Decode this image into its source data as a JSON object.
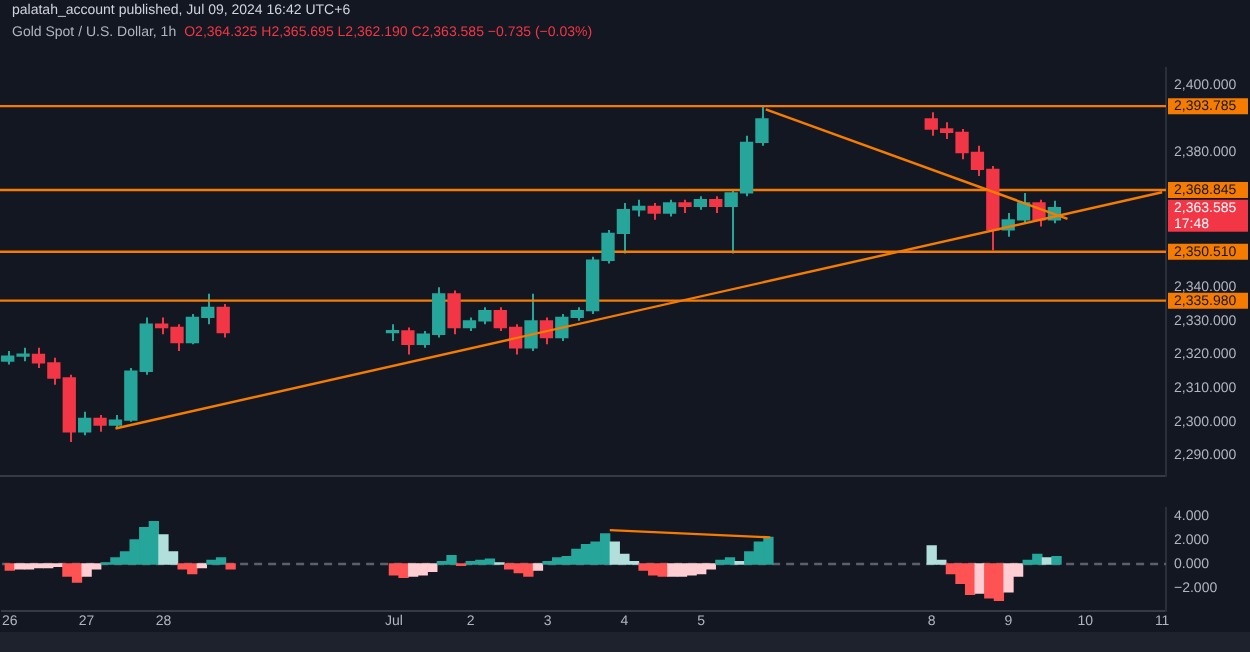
{
  "chart_data": [
    {
      "type": "candlestick",
      "title": "Gold Spot / U.S. Dollar, 1h",
      "subtitle": "palatah_account published, Jul 09, 2024 16:42 UTC+6",
      "annotations": [
        "O2,364.325 H2,365.695 L2,362.190 C2,363.585 −0.735 (−0.03%)",
        "2,363.585",
        "17:48"
      ],
      "x": [
        "2024-06-26T00:00",
        "2024-06-26T04:48",
        "2024-06-26T09:36",
        "2024-06-26T14:24",
        "2024-06-26T19:12",
        "2024-06-27T00:00",
        "2024-06-27T04:48",
        "2024-06-27T09:36",
        "2024-06-27T14:24",
        "2024-06-27T19:12",
        "2024-06-28T00:00",
        "2024-06-28T04:48",
        "2024-06-28T09:36",
        "2024-06-28T14:24",
        "2024-06-28T19:12",
        "2024-07-01T00:00",
        "2024-07-01T04:48",
        "2024-07-01T09:36",
        "2024-07-01T14:24",
        "2024-07-01T19:12",
        "2024-07-02T00:00",
        "2024-07-02T04:48",
        "2024-07-02T09:36",
        "2024-07-02T14:24",
        "2024-07-02T19:12",
        "2024-07-03T00:00",
        "2024-07-03T04:48",
        "2024-07-03T09:36",
        "2024-07-03T14:24",
        "2024-07-03T19:12",
        "2024-07-04T00:00",
        "2024-07-04T04:48",
        "2024-07-04T09:36",
        "2024-07-04T14:24",
        "2024-07-04T19:12",
        "2024-07-05T00:00",
        "2024-07-05T04:48",
        "2024-07-05T09:36",
        "2024-07-05T14:24",
        "2024-07-05T19:12",
        "2024-07-08T00:00",
        "2024-07-08T04:48",
        "2024-07-08T09:36",
        "2024-07-08T14:24",
        "2024-07-08T19:12",
        "2024-07-09T00:00",
        "2024-07-09T04:48",
        "2024-07-09T09:36",
        "2024-07-09T14:24"
      ],
      "ohlc": [
        [
          2318,
          2321,
          2317,
          2319.5
        ],
        [
          2319.5,
          2322,
          2318,
          2320
        ],
        [
          2320,
          2322,
          2316,
          2317.5
        ],
        [
          2317.5,
          2319,
          2311,
          2313
        ],
        [
          2313,
          2314,
          2294,
          2297
        ],
        [
          2297,
          2303,
          2296,
          2301
        ],
        [
          2301,
          2302,
          2297,
          2299
        ],
        [
          2299,
          2302,
          2298,
          2300.5
        ],
        [
          2300.5,
          2316,
          2300,
          2315
        ],
        [
          2315,
          2331,
          2314,
          2329
        ],
        [
          2329,
          2331,
          2326,
          2328
        ],
        [
          2328,
          2329,
          2321,
          2323.5
        ],
        [
          2323.5,
          2332,
          2323,
          2331
        ],
        [
          2331,
          2338,
          2329,
          2334
        ],
        [
          2334,
          2335,
          2325,
          2326.5
        ],
        [
          2326.5,
          2329,
          2324,
          2327
        ],
        [
          2327,
          2328,
          2320,
          2323
        ],
        [
          2323,
          2327,
          2322,
          2326
        ],
        [
          2326,
          2340,
          2325,
          2338
        ],
        [
          2338,
          2339,
          2326,
          2328
        ],
        [
          2328,
          2331,
          2327,
          2330
        ],
        [
          2330,
          2334,
          2329,
          2333
        ],
        [
          2333,
          2334,
          2327,
          2328
        ],
        [
          2328,
          2329,
          2320,
          2322
        ],
        [
          2322,
          2338,
          2321,
          2330
        ],
        [
          2330,
          2331,
          2323,
          2325
        ],
        [
          2325,
          2332,
          2324,
          2331
        ],
        [
          2331,
          2334,
          2330,
          2333
        ],
        [
          2333,
          2349,
          2332,
          2348
        ],
        [
          2348,
          2357,
          2347,
          2356
        ],
        [
          2356,
          2365,
          2350,
          2363
        ],
        [
          2363,
          2366,
          2361,
          2364
        ],
        [
          2364,
          2365,
          2360,
          2362
        ],
        [
          2362,
          2366,
          2361,
          2365
        ],
        [
          2365,
          2366,
          2362,
          2364
        ],
        [
          2364,
          2367,
          2363,
          2366
        ],
        [
          2366,
          2367,
          2362,
          2364
        ],
        [
          2364,
          2369,
          2350,
          2368
        ],
        [
          2368,
          2385,
          2367,
          2383
        ],
        [
          2383,
          2393.5,
          2382,
          2390
        ],
        [
          2390,
          2392,
          2385,
          2387
        ],
        [
          2387,
          2389,
          2384,
          2386
        ],
        [
          2386,
          2387,
          2378,
          2380
        ],
        [
          2380,
          2382,
          2373,
          2375
        ],
        [
          2375,
          2376,
          2351,
          2357
        ],
        [
          2357,
          2362,
          2355,
          2360
        ],
        [
          2360,
          2368,
          2359,
          2365
        ],
        [
          2365,
          2366,
          2358,
          2360
        ],
        [
          2360,
          2365.695,
          2359,
          2363.585
        ]
      ],
      "colors": [
        "#26a69a",
        "#26a69a",
        "#f23645",
        "#f23645",
        "#f23645",
        "#26a69a",
        "#f23645",
        "#26a69a",
        "#26a69a",
        "#26a69a",
        "#f23645",
        "#f23645",
        "#26a69a",
        "#26a69a",
        "#f23645",
        "#26a69a",
        "#f23645",
        "#26a69a",
        "#26a69a",
        "#f23645",
        "#26a69a",
        "#26a69a",
        "#f23645",
        "#f23645",
        "#26a69a",
        "#f23645",
        "#26a69a",
        "#26a69a",
        "#26a69a",
        "#26a69a",
        "#26a69a",
        "#26a69a",
        "#f23645",
        "#26a69a",
        "#f23645",
        "#26a69a",
        "#f23645",
        "#26a69a",
        "#26a69a",
        "#26a69a",
        "#f23645",
        "#f23645",
        "#f23645",
        "#f23645",
        "#f23645",
        "#26a69a",
        "#26a69a",
        "#f23645",
        "#26a69a"
      ],
      "series": [
        {
          "type": "line",
          "color": "#f57c00",
          "x": [
            "2024-06-27T09:36",
            "2024-07-11T00:00"
          ],
          "values": [
            2298,
            2368.2
          ]
        },
        {
          "type": "line",
          "color": "#f57c00",
          "x": [
            "2024-07-05T20:24",
            "2024-07-09T18:29"
          ],
          "values": [
            2392.8,
            2360.3
          ]
        }
      ],
      "ref_lines": [
        {
          "axis": "y",
          "value": 2393.785,
          "label": "2,393.785",
          "color": "#f57c00",
          "line_style": "solid"
        },
        {
          "axis": "y",
          "value": 2368.845,
          "label": "2,368.845",
          "color": "#f57c00",
          "line_style": "solid"
        },
        {
          "axis": "y",
          "value": 2350.51,
          "label": "2,350.510",
          "color": "#f57c00",
          "line_style": "solid"
        },
        {
          "axis": "y",
          "value": 2335.98,
          "label": "2,335.980",
          "color": "#f57c00",
          "line_style": "solid"
        }
      ],
      "xlim": [
        "2024-06-25T21:36",
        "2024-07-11T01:12"
      ],
      "ylim": [
        2284,
        2405
      ],
      "yticks": [
        {
          "value": 2400,
          "label": "2,400.000"
        },
        {
          "value": 2380,
          "label": "2,380.000"
        },
        {
          "value": 2340,
          "label": "2,340.000"
        },
        {
          "value": 2330,
          "label": "2,330.000"
        },
        {
          "value": 2320,
          "label": "2,320.000"
        },
        {
          "value": 2310,
          "label": "2,310.000"
        },
        {
          "value": 2300,
          "label": "2,300.000"
        },
        {
          "value": 2290,
          "label": "2,290.000"
        }
      ],
      "tick_labels": "y",
      "grid": false,
      "legend": false
    },
    {
      "type": "bar",
      "series": [
        {
          "type": "bar",
          "x": [
            "2024-06-26T00:00",
            "2024-06-26T03:00",
            "2024-06-26T06:00",
            "2024-06-26T09:00",
            "2024-06-26T12:00",
            "2024-06-26T15:00",
            "2024-06-26T18:00",
            "2024-06-26T21:00",
            "2024-06-27T00:00",
            "2024-06-27T03:00",
            "2024-06-27T06:00",
            "2024-06-27T09:00",
            "2024-06-27T12:00",
            "2024-06-27T15:00",
            "2024-06-27T18:00",
            "2024-06-27T21:00",
            "2024-06-28T00:00",
            "2024-06-28T03:00",
            "2024-06-28T06:00",
            "2024-06-28T09:00",
            "2024-06-28T12:00",
            "2024-06-28T15:00",
            "2024-06-28T18:00",
            "2024-06-28T21:00",
            "2024-07-01T00:00",
            "2024-07-01T03:00",
            "2024-07-01T06:00",
            "2024-07-01T09:00",
            "2024-07-01T12:00",
            "2024-07-01T15:00",
            "2024-07-01T18:00",
            "2024-07-01T21:00",
            "2024-07-02T00:00",
            "2024-07-02T03:00",
            "2024-07-02T06:00",
            "2024-07-02T09:00",
            "2024-07-02T12:00",
            "2024-07-02T15:00",
            "2024-07-02T18:00",
            "2024-07-02T21:00",
            "2024-07-03T00:00",
            "2024-07-03T03:00",
            "2024-07-03T06:00",
            "2024-07-03T09:00",
            "2024-07-03T12:00",
            "2024-07-03T15:00",
            "2024-07-03T18:00",
            "2024-07-03T21:00",
            "2024-07-04T00:00",
            "2024-07-04T03:00",
            "2024-07-04T06:00",
            "2024-07-04T09:00",
            "2024-07-04T12:00",
            "2024-07-04T15:00",
            "2024-07-04T18:00",
            "2024-07-04T21:00",
            "2024-07-05T00:00",
            "2024-07-05T03:00",
            "2024-07-05T06:00",
            "2024-07-05T09:00",
            "2024-07-05T12:00",
            "2024-07-05T15:00",
            "2024-07-05T18:00",
            "2024-07-05T21:00",
            "2024-07-08T00:00",
            "2024-07-08T03:00",
            "2024-07-08T06:00",
            "2024-07-08T09:00",
            "2024-07-08T12:00",
            "2024-07-08T15:00",
            "2024-07-08T18:00",
            "2024-07-08T21:00",
            "2024-07-09T00:00",
            "2024-07-09T03:00",
            "2024-07-09T06:00",
            "2024-07-09T09:00",
            "2024-07-09T12:00",
            "2024-07-09T15:00"
          ],
          "values": [
            -0.5,
            -0.4,
            -0.4,
            -0.3,
            -0.3,
            -0.2,
            -1.0,
            -1.5,
            -1.0,
            -0.4,
            0.1,
            0.5,
            1.0,
            2.0,
            3.0,
            3.5,
            2.4,
            1.0,
            -0.4,
            -0.8,
            -0.3,
            0.3,
            0.5,
            -0.4,
            -0.9,
            -1.1,
            -1.0,
            -0.9,
            -0.6,
            0.2,
            0.7,
            -0.1,
            0.2,
            0.3,
            0.4,
            0.1,
            -0.4,
            -0.7,
            -1.0,
            -0.5,
            0.2,
            0.5,
            0.6,
            1.2,
            1.6,
            1.8,
            2.5,
            1.8,
            0.8,
            0.2,
            -0.5,
            -0.9,
            -1.0,
            -1.0,
            -1.0,
            -0.9,
            -0.8,
            -0.4,
            0.3,
            0.5,
            0.2,
            1.0,
            1.8,
            2.2,
            1.5,
            0.3,
            -0.8,
            -1.6,
            -2.5,
            -2.4,
            -2.8,
            -3.0,
            -2.3,
            -1.0,
            0.3,
            0.8,
            0.5,
            0.6
          ],
          "colors": [
            "#ff5252",
            "#ffcdd2",
            "#ffcdd2",
            "#ffcdd2",
            "#ffcdd2",
            "#ffcdd2",
            "#ff5252",
            "#ff5252",
            "#ffcdd2",
            "#ffcdd2",
            "#26a69a",
            "#26a69a",
            "#26a69a",
            "#26a69a",
            "#26a69a",
            "#26a69a",
            "#b2dfdb",
            "#b2dfdb",
            "#ff5252",
            "#ff5252",
            "#ffcdd2",
            "#26a69a",
            "#26a69a",
            "#ff5252",
            "#ff5252",
            "#ff5252",
            "#ffcdd2",
            "#ffcdd2",
            "#ffcdd2",
            "#26a69a",
            "#26a69a",
            "#ff5252",
            "#26a69a",
            "#26a69a",
            "#26a69a",
            "#b2dfdb",
            "#ff5252",
            "#ff5252",
            "#ff5252",
            "#ffcdd2",
            "#26a69a",
            "#26a69a",
            "#26a69a",
            "#26a69a",
            "#26a69a",
            "#26a69a",
            "#26a69a",
            "#b2dfdb",
            "#b2dfdb",
            "#b2dfdb",
            "#ff5252",
            "#ff5252",
            "#ff5252",
            "#ffcdd2",
            "#ffcdd2",
            "#ffcdd2",
            "#ffcdd2",
            "#ffcdd2",
            "#26a69a",
            "#26a69a",
            "#b2dfdb",
            "#26a69a",
            "#26a69a",
            "#26a69a",
            "#b2dfdb",
            "#b2dfdb",
            "#ff5252",
            "#ff5252",
            "#ff5252",
            "#ffcdd2",
            "#ff5252",
            "#ff5252",
            "#ffcdd2",
            "#ffcdd2",
            "#26a69a",
            "#26a69a",
            "#b2dfdb",
            "#26a69a"
          ]
        },
        {
          "type": "line",
          "color": "#f57c00",
          "x": [
            "2024-07-03T19:26",
            "2024-07-05T21:36"
          ],
          "values": [
            2.8,
            2.2
          ]
        }
      ],
      "ref_lines": [
        {
          "axis": "y",
          "value": 0,
          "color": "#5d606b",
          "line_style": "dashed"
        }
      ],
      "xlim": [
        "2024-06-25T21:36",
        "2024-07-11T01:12"
      ],
      "ylim": [
        -3.9,
        4.6
      ],
      "xticks": [
        {
          "value": "2024-06-26",
          "label": "26"
        },
        {
          "value": "2024-06-27",
          "label": "27"
        },
        {
          "value": "2024-06-28",
          "label": "28"
        },
        {
          "value": "2024-07-01",
          "label": "Jul"
        },
        {
          "value": "2024-07-02",
          "label": "2"
        },
        {
          "value": "2024-07-03",
          "label": "3"
        },
        {
          "value": "2024-07-04",
          "label": "4"
        },
        {
          "value": "2024-07-05",
          "label": "5"
        },
        {
          "value": "2024-07-08",
          "label": "8"
        },
        {
          "value": "2024-07-09",
          "label": "9"
        },
        {
          "value": "2024-07-10",
          "label": "10"
        },
        {
          "value": "2024-07-11",
          "label": "11"
        }
      ],
      "yticks": [
        {
          "value": 4,
          "label": "4.000"
        },
        {
          "value": 2,
          "label": "2.000"
        },
        {
          "value": 0,
          "label": "0.000"
        },
        {
          "value": -2,
          "label": "−2.000"
        }
      ],
      "grid": false,
      "legend": false
    }
  ]
}
